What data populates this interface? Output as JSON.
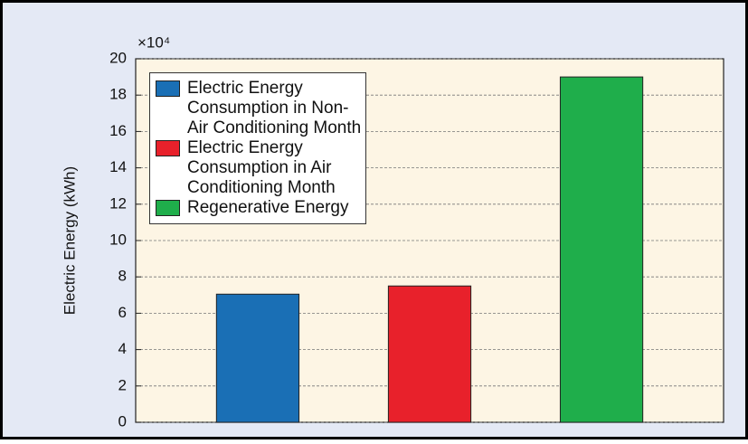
{
  "chart_data": {
    "type": "bar",
    "ylabel": "Electric Energy (kWh)",
    "axis_multiplier": "×10⁴",
    "categories": [
      null
    ],
    "series": [
      {
        "name": "Electric Energy Consumption in Non-Air Conditioning Month",
        "color": "#1a6fb5",
        "values": [
          7.05
        ]
      },
      {
        "name": "Electric Energy Consumption in Air Conditioning Month",
        "color": "#e8212b",
        "values": [
          7.5
        ]
      },
      {
        "name": "Regenerative Energy",
        "color": "#1fae4b",
        "values": [
          19
        ]
      }
    ],
    "ylim": [
      0,
      20
    ],
    "yticks": [
      0,
      2,
      4,
      6,
      8,
      10,
      12,
      14,
      16,
      18,
      20
    ],
    "grid": true
  }
}
